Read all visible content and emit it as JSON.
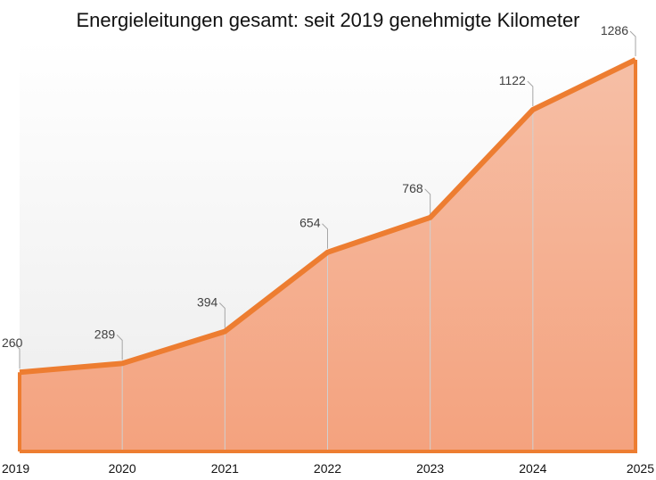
{
  "chart_data": {
    "type": "area",
    "title": "Energieleitungen gesamt: seit 2019 genehmigte Kilometer",
    "categories": [
      "2019",
      "2020",
      "2021",
      "2022",
      "2023",
      "2024",
      "2025"
    ],
    "series": [
      {
        "values": [
          260,
          289,
          394,
          654,
          768,
          1122,
          1286
        ]
      }
    ],
    "data_labels": [
      "260",
      "289",
      "394",
      "654",
      "768",
      "1122",
      "1286"
    ],
    "xlabel": "",
    "ylabel": "",
    "ylim": [
      0,
      1286
    ],
    "grid": false,
    "legend": "none",
    "colors": {
      "line": "#ED7D31",
      "fill_top": "#F6BFA6",
      "fill_bottom": "#F4A27E",
      "background_top": "#FFFFFF",
      "background_bottom": "#ECECEC",
      "leader": "#A6A6A6",
      "guide": "#D0D0D0"
    }
  }
}
